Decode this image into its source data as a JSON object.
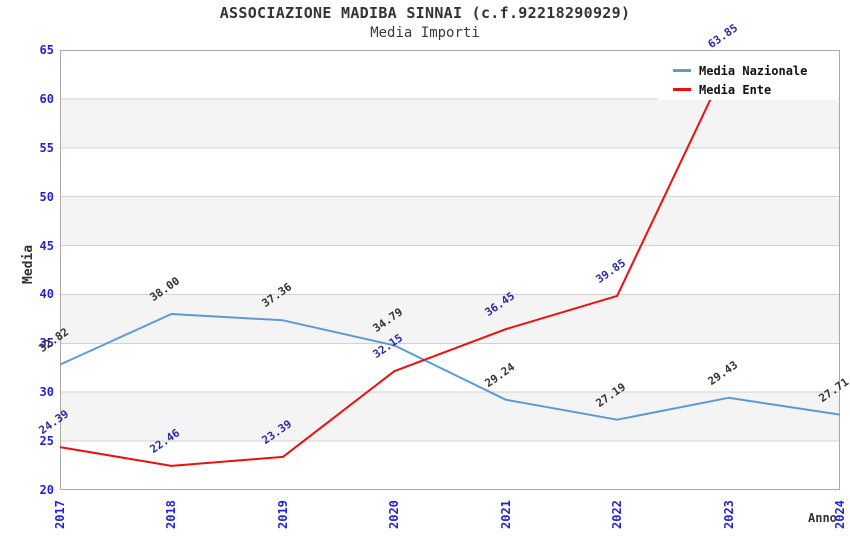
{
  "chart_data": {
    "type": "line",
    "title": "ASSOCIAZIONE MADIBA SINNAI (c.f.92218290929)",
    "subtitle": "Media Importi",
    "xlabel": "Anno",
    "ylabel": "Media",
    "x_labels": [
      "2017",
      "2018",
      "2019",
      "2020",
      "2021",
      "2022",
      "2023",
      "2024"
    ],
    "ylim": [
      20,
      65
    ],
    "ytick_step": 5,
    "grid": true,
    "banded_background": true,
    "legend_position": "top-right",
    "series": [
      {
        "name": "Media Nazionale",
        "color": "#5b9bd5",
        "label_color": "#333333",
        "values": [
          32.82,
          38.0,
          37.36,
          34.79,
          29.24,
          27.19,
          29.43,
          27.71
        ]
      },
      {
        "name": "Media Ente",
        "color": "#ee0e0e",
        "label_color": "#2a2aa8",
        "values": [
          24.39,
          22.46,
          23.39,
          32.15,
          36.45,
          39.85,
          63.85,
          null
        ]
      }
    ],
    "colors": {
      "band": "#f4f4f4",
      "grid": "#d2d2d2",
      "border": "#aaaaaa",
      "tick_label": "#2424cc",
      "title": "#333333",
      "legend_bg": "#ffffff"
    }
  }
}
